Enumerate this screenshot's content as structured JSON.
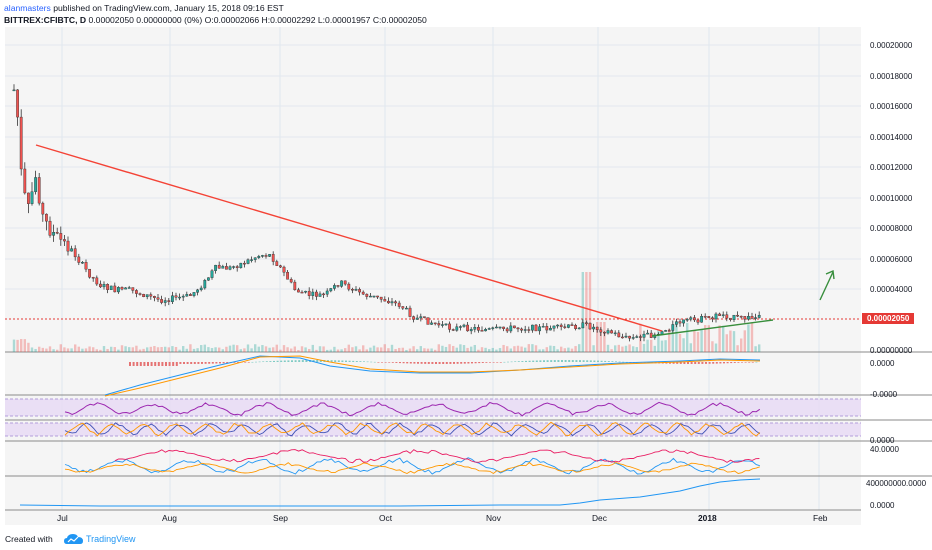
{
  "header": {
    "user": "alanmasters",
    "published": " published on TradingView.com, January 15, 2018 09:16 EST",
    "symbol": "BITTREX:CFIBTC, D",
    "quote": " 0.00002050 0.00000000 (0%) O:0.00002066 H:0.00002292 L:0.00001957 C:0.00002050"
  },
  "price_axis": {
    "labels": [
      "0.00020000",
      "0.00018000",
      "0.00016000",
      "0.00014000",
      "0.00012000",
      "0.00010000",
      "0.00008000",
      "0.00006000",
      "0.00004000",
      "0.00000000"
    ],
    "last_price": "0.00002050"
  },
  "indicator_axis": {
    "macd": "0.0000",
    "rsi": "-0.0000",
    "stoch": "0.0000",
    "dmi": "40.0000",
    "obv_top": "400000000.0000",
    "obv_bottom": "0.0000"
  },
  "time_axis": {
    "labels": [
      "Jul",
      "Aug",
      "Sep",
      "Oct",
      "Nov",
      "Dec",
      "2018",
      "Feb"
    ]
  },
  "footer": {
    "created_with": "Created with",
    "brand": "TradingView"
  },
  "colors": {
    "up": "#26a69a",
    "down": "#ef5350",
    "trendline": "#f44336",
    "support": "#388e3c"
  },
  "drawings": {
    "trendline": "red descending trendline",
    "support": "green rising support line",
    "arrow": "green up arrow"
  },
  "icons": {
    "logo": "tradingview-cloud-icon"
  }
}
